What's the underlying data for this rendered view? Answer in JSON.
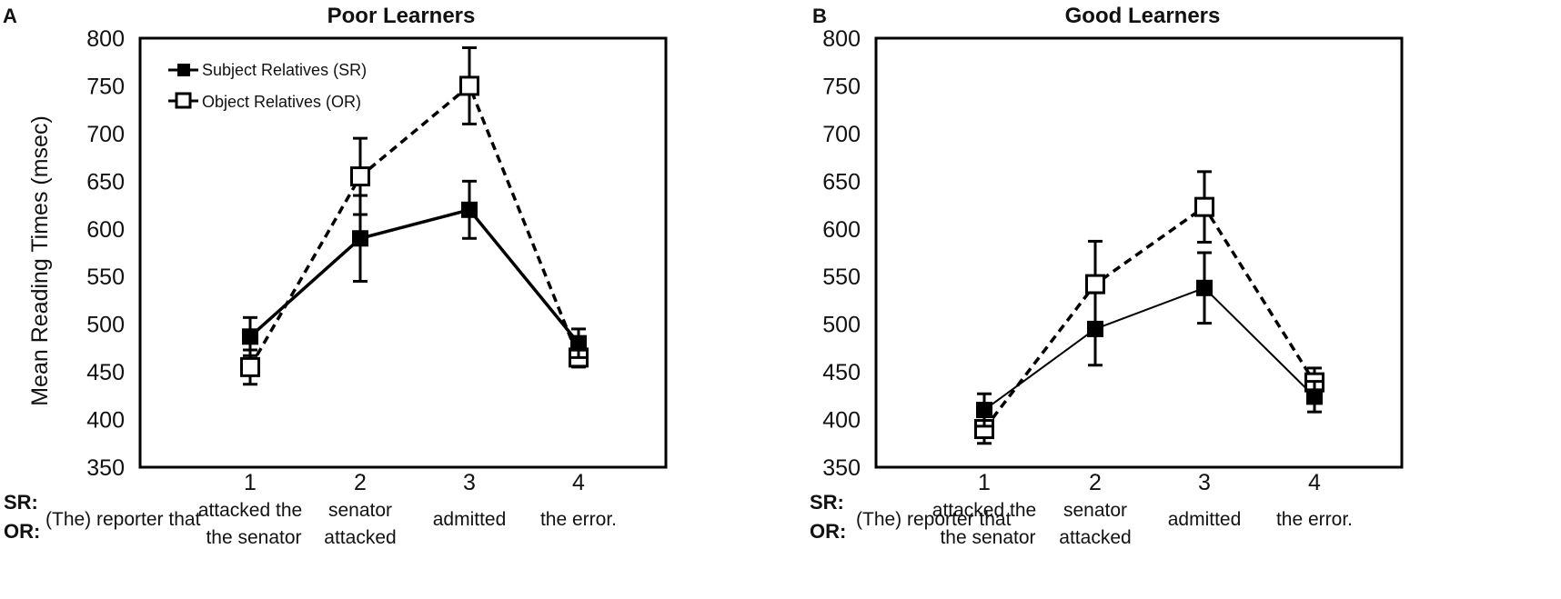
{
  "chart_data": [
    {
      "panel": "A",
      "title": "Poor Learners",
      "type": "line",
      "ylabel": "Mean Reading Times (msec)",
      "ylim": [
        350,
        800
      ],
      "y_ticks": [
        "800",
        "750",
        "700",
        "650",
        "600",
        "550",
        "500",
        "450",
        "400",
        "350"
      ],
      "x": [
        "1",
        "2",
        "3",
        "4"
      ],
      "row_labels": [
        "SR:",
        "OR:"
      ],
      "region0_label": "(The) reporter that",
      "region_words": [
        {
          "line1": "attacked the",
          "line2": "the senator"
        },
        {
          "line1": "senator",
          "line2": "attacked"
        },
        {
          "line1": "admitted",
          "line2": ""
        },
        {
          "line1": "the error.",
          "line2": ""
        }
      ],
      "legend_position": "top-left",
      "series": [
        {
          "name": "Subject Relatives (SR)",
          "marker": "filled-square",
          "line": "solid-thick",
          "values": [
            487,
            590,
            620,
            480
          ],
          "err": [
            20,
            45,
            30,
            15
          ]
        },
        {
          "name": "Object Relatives (OR)",
          "marker": "open-square",
          "line": "dashed",
          "values": [
            455,
            655,
            750,
            465
          ],
          "err": [
            18,
            40,
            40,
            10
          ]
        }
      ]
    },
    {
      "panel": "B",
      "title": "Good Learners",
      "type": "line",
      "ylabel": "",
      "ylim": [
        350,
        800
      ],
      "y_ticks": [
        "800",
        "750",
        "700",
        "650",
        "600",
        "550",
        "500",
        "450",
        "400",
        "350"
      ],
      "x": [
        "1",
        "2",
        "3",
        "4"
      ],
      "row_labels": [
        "SR:",
        "OR:"
      ],
      "region0_label": "(The) reporter that",
      "region_words": [
        {
          "line1": "attacked the",
          "line2": "the senator"
        },
        {
          "line1": "senator",
          "line2": "attacked"
        },
        {
          "line1": "admitted",
          "line2": ""
        },
        {
          "line1": "the error.",
          "line2": ""
        }
      ],
      "legend_position": "none",
      "series": [
        {
          "name": "Subject Relatives (SR)",
          "marker": "filled-square",
          "line": "solid-thin",
          "values": [
            410,
            495,
            538,
            424
          ],
          "err": [
            17,
            38,
            37,
            16
          ]
        },
        {
          "name": "Object Relatives (OR)",
          "marker": "open-square",
          "line": "dashed",
          "values": [
            390,
            542,
            623,
            439
          ],
          "err": [
            15,
            45,
            37,
            15
          ]
        }
      ]
    }
  ]
}
